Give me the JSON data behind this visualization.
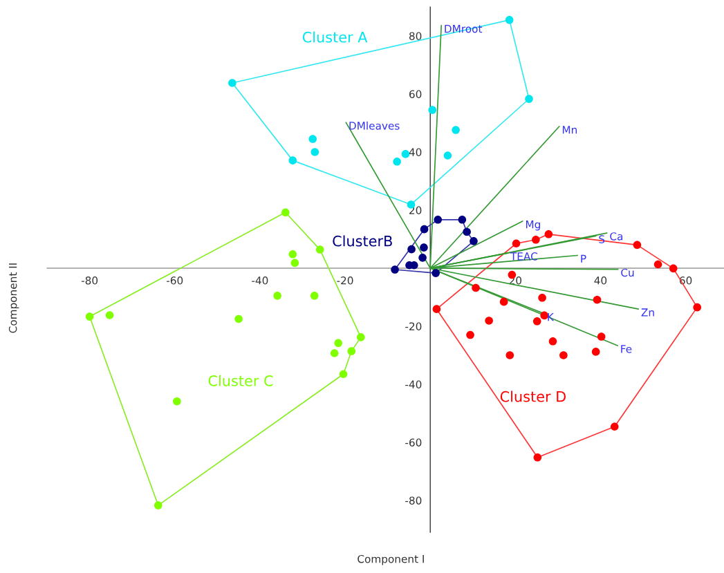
{
  "chart_data": {
    "type": "scatter",
    "xlabel": "Component I",
    "ylabel": "Component II",
    "xlim": [
      -90,
      69
    ],
    "ylim": [
      -91,
      90
    ],
    "xticks": [
      -80,
      -60,
      -40,
      -20,
      20,
      40,
      60
    ],
    "yticks": [
      -80,
      -60,
      -40,
      -20,
      20,
      40,
      60,
      80
    ],
    "grid": false,
    "legend": false,
    "series": [
      {
        "name": "Cluster A",
        "marker": "circle",
        "color": "#00e5ee",
        "x": [
          -46.5,
          -32.3,
          -27.6,
          -27.1,
          -7.8,
          -5.8,
          -4.5,
          0.5,
          4.1,
          6.0,
          18.6,
          23.2
        ],
        "values": [
          63.8,
          37.1,
          44.5,
          40,
          36.7,
          39.3,
          21.9,
          54.5,
          38.8,
          47.6,
          85.5,
          58.3
        ]
      },
      {
        "name": "ClusterB",
        "marker": "circle",
        "color": "#000080",
        "x": [
          -8.3,
          -4.9,
          -3.8,
          -4.4,
          -1.8,
          -1.5,
          -1.4,
          1.8,
          7.5,
          8.6,
          10.2,
          1.3
        ],
        "values": [
          -0.5,
          1.0,
          1.0,
          6.5,
          3.6,
          7.1,
          13.4,
          16.7,
          16.7,
          12.5,
          9.3,
          -1.7
        ]
      },
      {
        "name": "Cluster C",
        "marker": "circle",
        "color": "#7fff00",
        "x": [
          -34.0,
          -25.9,
          -32.3,
          -31.8,
          -35.9,
          -27.2,
          -80.0,
          -75.3,
          -45.0,
          -16.3,
          -21.6,
          -22.5,
          -18.5,
          -20.4,
          -59.5,
          -63.9
        ],
        "values": [
          19.2,
          6.4,
          4.8,
          1.8,
          -9.5,
          -9.5,
          -16.7,
          -16.2,
          -17.5,
          -23.8,
          -25.8,
          -29.3,
          -28.6,
          -36.5,
          -45.9,
          -81.7
        ]
      },
      {
        "name": "Cluster D",
        "marker": "circle",
        "color": "#ff0000",
        "x": [
          1.5,
          20.2,
          24.8,
          27.8,
          48.6,
          53.5,
          57.1,
          62.7,
          19.2,
          10.7,
          17.3,
          26.3,
          39.2,
          26.8,
          25.1,
          13.8,
          9.4,
          28.8,
          40.2,
          18.7,
          31.3,
          38.9,
          25.2,
          43.3
        ],
        "values": [
          -14.1,
          8.5,
          9.8,
          11.7,
          8.0,
          1.3,
          -0.1,
          -13.5,
          -2.3,
          -6.8,
          -11.6,
          -10.2,
          -10.9,
          -16.3,
          -18.3,
          -18.1,
          -23.0,
          -25.2,
          -23.6,
          -30.0,
          -30.0,
          -28.8,
          -65.2,
          -54.6
        ]
      },
      {
        "type": "line",
        "color": "#33e8f0",
        "x": [
          -46.5,
          18.6,
          23.2
        ],
        "values": [
          63.8,
          85.5,
          58.3
        ]
      },
      {
        "type": "line",
        "color": "#33e8f0",
        "x": [
          -46.5,
          -32.3,
          -4.5,
          23.2
        ],
        "values": [
          63.8,
          37.1,
          21.9,
          58.3
        ]
      },
      {
        "type": "line",
        "color": "#3333aa",
        "x": [
          -8.3,
          -1.4,
          1.8,
          7.5,
          8.6,
          10.2
        ],
        "values": [
          -0.5,
          13.4,
          16.7,
          16.7,
          12.5,
          9.3
        ]
      },
      {
        "type": "line",
        "color": "#3333aa",
        "x": [
          -8.3,
          1.3,
          10.2
        ],
        "values": [
          -0.5,
          -1.7,
          9.3
        ]
      },
      {
        "type": "line",
        "color": "#88ee22",
        "x": [
          -80.0,
          -34.0,
          -25.9,
          -16.3
        ],
        "values": [
          -16.7,
          19.2,
          6.4,
          -23.8
        ]
      },
      {
        "type": "line",
        "color": "#88ee22",
        "x": [
          -80.0,
          -63.9,
          -20.4,
          -18.5,
          -16.3
        ],
        "values": [
          -16.7,
          -81.7,
          -36.5,
          -28.6,
          -23.8
        ]
      },
      {
        "type": "line",
        "color": "#ff3333",
        "x": [
          1.5,
          20.2,
          24.8,
          27.8,
          48.6,
          57.1,
          62.7
        ],
        "values": [
          -14.1,
          8.5,
          9.8,
          11.7,
          8.0,
          -0.1,
          -13.5
        ]
      },
      {
        "type": "line",
        "color": "#ff3333",
        "x": [
          1.5,
          25.2,
          43.3,
          62.7
        ],
        "values": [
          -14.1,
          -65.2,
          -54.6,
          -13.5
        ]
      },
      {
        "type": "line",
        "name": "DMroot",
        "color": "#339933",
        "x": [
          0,
          2.6
        ],
        "values": [
          0,
          83.6
        ]
      },
      {
        "type": "line",
        "name": "DMleaves",
        "color": "#339933",
        "x": [
          0,
          -19.8
        ],
        "values": [
          0,
          50.2
        ]
      },
      {
        "type": "line",
        "name": "Mn",
        "color": "#339933",
        "x": [
          0,
          30.3
        ],
        "values": [
          0,
          48.8
        ]
      },
      {
        "type": "line",
        "name": "Mg",
        "color": "#339933",
        "x": [
          0,
          21.7
        ],
        "values": [
          0,
          16.2
        ]
      },
      {
        "type": "line",
        "name": "Ca",
        "color": "#339933",
        "x": [
          0,
          41.5
        ],
        "values": [
          0,
          12.1
        ]
      },
      {
        "type": "line",
        "name": "S",
        "color": "#339933",
        "x": [
          0,
          38.9
        ],
        "values": [
          0,
          11.1
        ]
      },
      {
        "type": "line",
        "name": "TEAC",
        "color": "#339933",
        "x": [
          0,
          18.2
        ],
        "values": [
          0,
          5.2
        ]
      },
      {
        "type": "line",
        "name": "P",
        "color": "#339933",
        "x": [
          0,
          34.6
        ],
        "values": [
          0,
          4.4
        ]
      },
      {
        "type": "line",
        "name": "Cu",
        "color": "#339933",
        "x": [
          0,
          44.1
        ],
        "values": [
          0,
          -0.4
        ]
      },
      {
        "type": "line",
        "name": "Zn",
        "color": "#339933",
        "x": [
          0,
          48.9
        ],
        "values": [
          0,
          -14.1
        ]
      },
      {
        "type": "line",
        "name": "K",
        "color": "#339933",
        "x": [
          0,
          26.8
        ],
        "values": [
          0,
          -15.7
        ]
      },
      {
        "type": "line",
        "name": "Fe",
        "color": "#339933",
        "x": [
          0,
          44.0
        ],
        "values": [
          0,
          -26.7
        ]
      }
    ]
  }
}
